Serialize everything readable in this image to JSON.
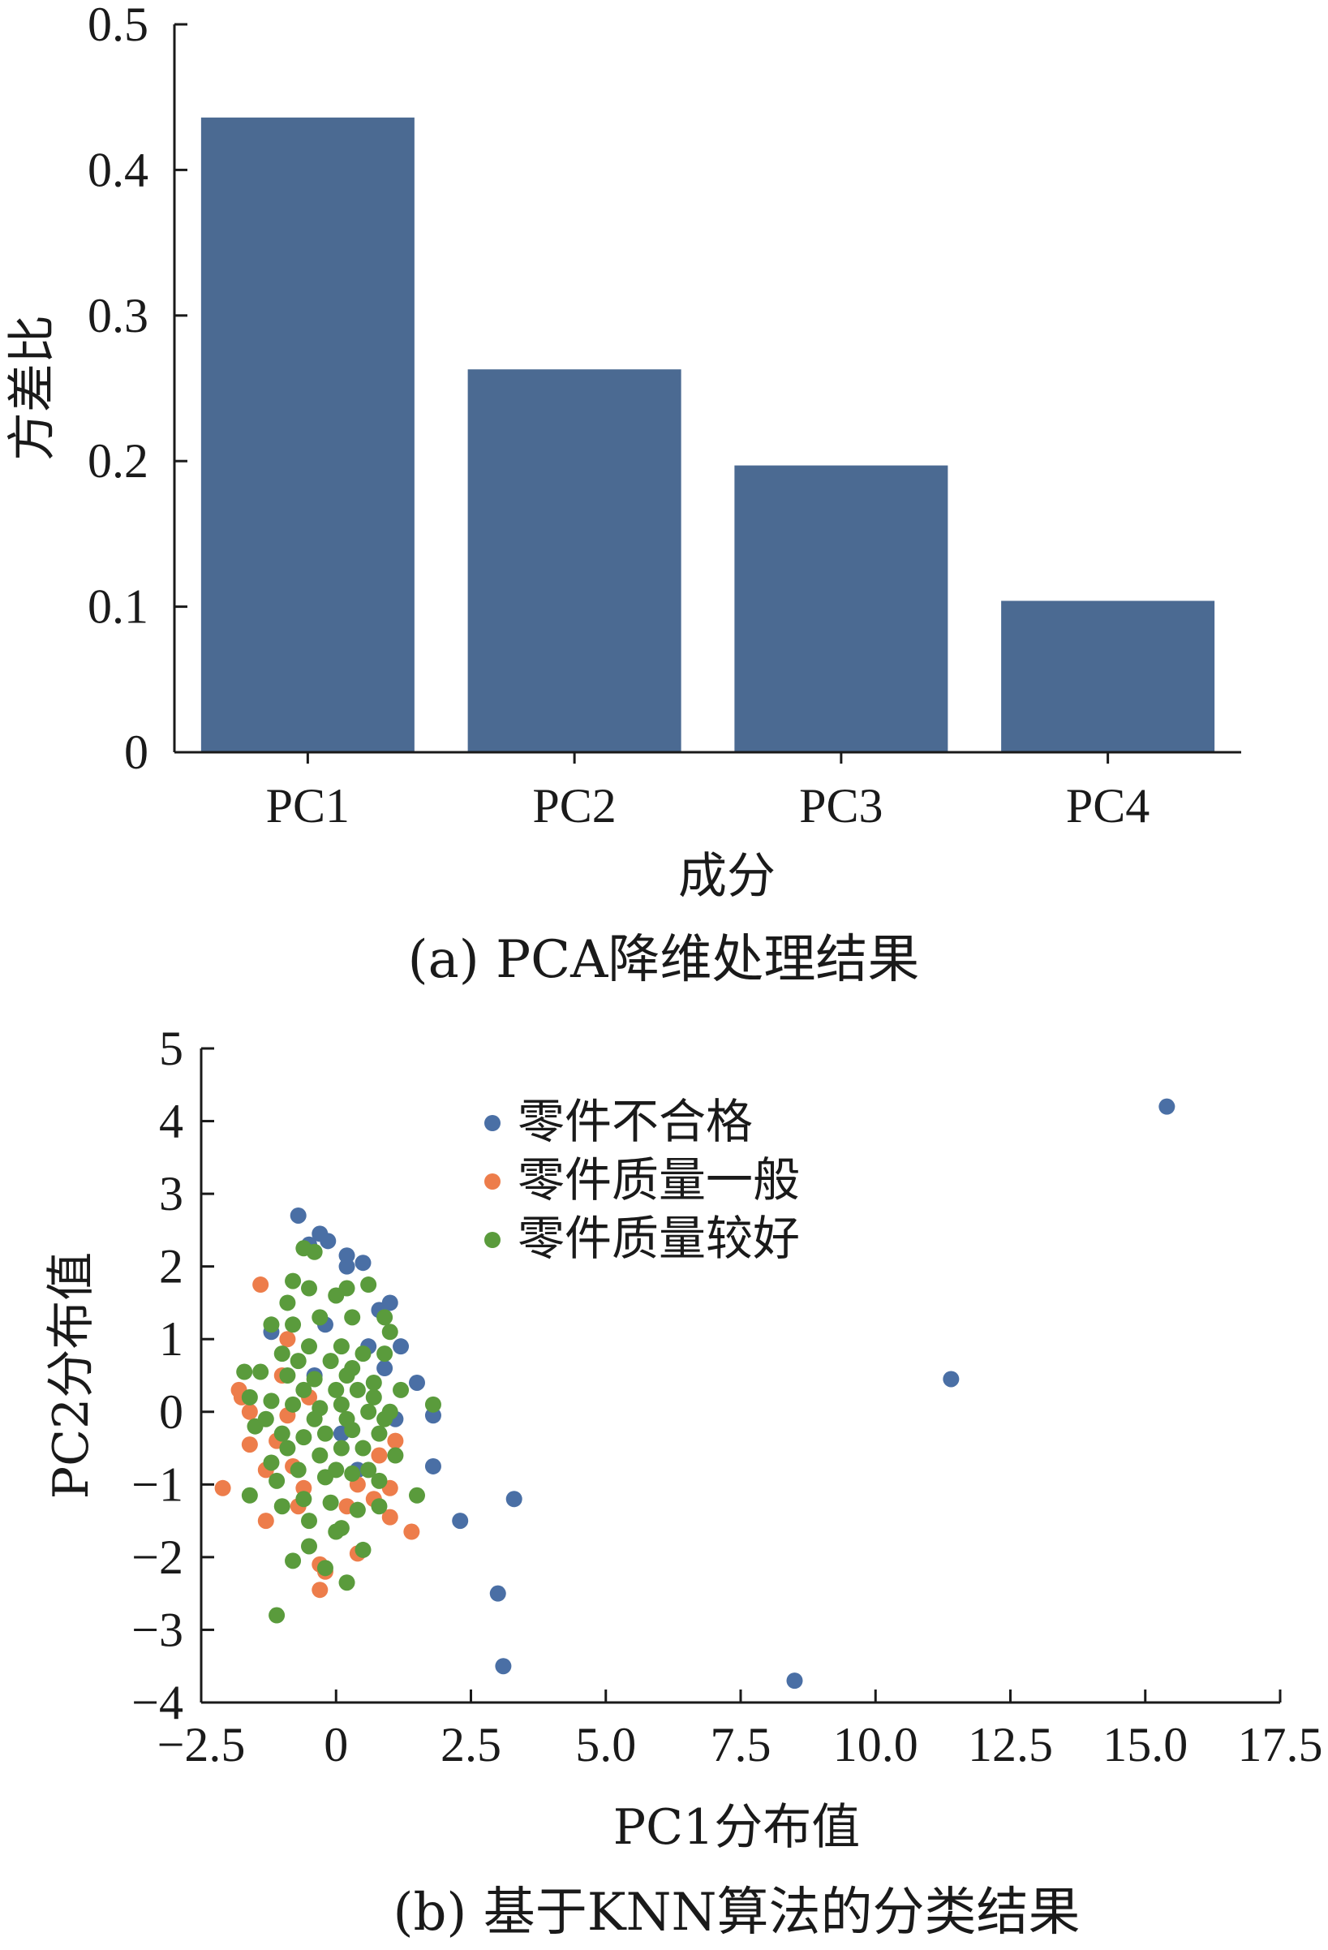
{
  "chart_data": [
    {
      "type": "bar",
      "categories": [
        "PC1",
        "PC2",
        "PC3",
        "PC4"
      ],
      "values": [
        0.436,
        0.263,
        0.197,
        0.104
      ],
      "xlabel": "成分",
      "ylabel": "方差比",
      "ylim": [
        0,
        0.5
      ],
      "yticks": [
        "0",
        "0.1",
        "0.2",
        "0.3",
        "0.4",
        "0.5"
      ],
      "caption": "(a)  PCA降维处理结果",
      "bar_color": "#4b6a92",
      "grid": false
    },
    {
      "type": "scatter",
      "xlabel": "PC1分布值",
      "ylabel": "PC2分布值",
      "xlim": [
        -2.5,
        17.5
      ],
      "ylim": [
        -4,
        5
      ],
      "xticks": [
        "−2.5",
        "0",
        "2.5",
        "5.0",
        "7.5",
        "10.0",
        "12.5",
        "15.0",
        "17.5"
      ],
      "yticks": [
        "−4",
        "−3",
        "−2",
        "−1",
        "0",
        "1",
        "2",
        "3",
        "4",
        "5"
      ],
      "caption": "(b)  基于KNN算法的分类结果",
      "legend_position": "top-center",
      "grid": false,
      "series": [
        {
          "name": "零件不合格",
          "color": "#4a6fa5",
          "points": [
            [
              -0.7,
              2.7
            ],
            [
              -0.3,
              2.45
            ],
            [
              -0.15,
              2.35
            ],
            [
              0.2,
              2.15
            ],
            [
              0.5,
              2.05
            ],
            [
              0.2,
              2.0
            ],
            [
              -0.5,
              2.3
            ],
            [
              1.0,
              1.5
            ],
            [
              0.8,
              1.4
            ],
            [
              -1.2,
              1.1
            ],
            [
              1.2,
              0.9
            ],
            [
              0.9,
              0.6
            ],
            [
              1.5,
              0.4
            ],
            [
              1.8,
              -0.05
            ],
            [
              1.1,
              -0.1
            ],
            [
              1.8,
              -0.75
            ],
            [
              2.3,
              -1.5
            ],
            [
              3.3,
              -1.2
            ],
            [
              3.0,
              -2.5
            ],
            [
              3.1,
              -3.5
            ],
            [
              8.5,
              -3.7
            ],
            [
              11.4,
              0.45
            ],
            [
              15.4,
              4.2
            ],
            [
              0.1,
              -0.3
            ],
            [
              -0.4,
              0.5
            ],
            [
              0.6,
              0.9
            ],
            [
              0.4,
              -0.8
            ],
            [
              -0.2,
              1.2
            ]
          ]
        },
        {
          "name": "零件质量一般",
          "color": "#ed7d4b",
          "points": [
            [
              -1.4,
              1.75
            ],
            [
              -1.6,
              0.0
            ],
            [
              -1.75,
              0.2
            ],
            [
              -1.8,
              0.3
            ],
            [
              -1.6,
              -0.45
            ],
            [
              -2.1,
              -1.05
            ],
            [
              -1.3,
              -0.8
            ],
            [
              -1.3,
              -1.5
            ],
            [
              -1.1,
              -0.4
            ],
            [
              -0.9,
              -0.05
            ],
            [
              -0.8,
              -0.75
            ],
            [
              -0.6,
              -1.05
            ],
            [
              -0.3,
              -2.1
            ],
            [
              -0.3,
              -2.45
            ],
            [
              -0.2,
              -2.2
            ],
            [
              0.4,
              -1.95
            ],
            [
              0.4,
              -1.0
            ],
            [
              0.7,
              -1.2
            ],
            [
              1.0,
              -1.05
            ],
            [
              1.0,
              -1.45
            ],
            [
              1.1,
              -0.4
            ],
            [
              1.4,
              -1.65
            ],
            [
              -0.9,
              1.0
            ],
            [
              -0.5,
              0.2
            ],
            [
              0.2,
              -1.3
            ],
            [
              -1.0,
              0.5
            ],
            [
              0.8,
              -0.6
            ],
            [
              -0.7,
              -1.3
            ]
          ]
        },
        {
          "name": "零件质量较好",
          "color": "#5a9b3c",
          "points": [
            [
              -0.6,
              2.25
            ],
            [
              -0.4,
              2.2
            ],
            [
              -0.8,
              1.8
            ],
            [
              -0.5,
              1.7
            ],
            [
              0.0,
              1.6
            ],
            [
              0.2,
              1.7
            ],
            [
              0.6,
              1.75
            ],
            [
              -0.9,
              1.5
            ],
            [
              -1.2,
              1.2
            ],
            [
              -0.8,
              1.2
            ],
            [
              -0.3,
              1.3
            ],
            [
              0.3,
              1.3
            ],
            [
              0.9,
              1.3
            ],
            [
              1.0,
              1.1
            ],
            [
              -1.0,
              0.8
            ],
            [
              -0.5,
              0.9
            ],
            [
              0.1,
              0.9
            ],
            [
              0.5,
              0.8
            ],
            [
              0.9,
              0.8
            ],
            [
              -1.7,
              0.55
            ],
            [
              -1.4,
              0.55
            ],
            [
              -0.9,
              0.5
            ],
            [
              -0.4,
              0.45
            ],
            [
              0.2,
              0.5
            ],
            [
              0.7,
              0.4
            ],
            [
              1.2,
              0.3
            ],
            [
              -1.6,
              0.2
            ],
            [
              -1.2,
              0.15
            ],
            [
              -0.8,
              0.1
            ],
            [
              -0.3,
              0.05
            ],
            [
              0.1,
              0.1
            ],
            [
              0.6,
              0.0
            ],
            [
              1.0,
              0.0
            ],
            [
              1.8,
              0.1
            ],
            [
              -1.5,
              -0.2
            ],
            [
              -1.0,
              -0.3
            ],
            [
              -0.6,
              -0.35
            ],
            [
              -0.2,
              -0.3
            ],
            [
              0.3,
              -0.25
            ],
            [
              0.8,
              -0.3
            ],
            [
              1.1,
              -0.6
            ],
            [
              -1.2,
              -0.7
            ],
            [
              -0.7,
              -0.8
            ],
            [
              -0.2,
              -0.9
            ],
            [
              0.3,
              -0.85
            ],
            [
              0.8,
              -0.95
            ],
            [
              1.5,
              -1.15
            ],
            [
              -1.6,
              -1.15
            ],
            [
              -1.1,
              -0.95
            ],
            [
              -0.6,
              -1.2
            ],
            [
              -0.1,
              -1.25
            ],
            [
              0.4,
              -1.35
            ],
            [
              0.8,
              -1.3
            ],
            [
              -1.0,
              -1.3
            ],
            [
              -0.5,
              -1.5
            ],
            [
              0.1,
              -1.6
            ],
            [
              -0.8,
              -2.05
            ],
            [
              -0.5,
              -1.85
            ],
            [
              0.0,
              -1.65
            ],
            [
              0.5,
              -1.9
            ],
            [
              -0.2,
              -2.15
            ],
            [
              0.2,
              -2.35
            ],
            [
              -1.1,
              -2.8
            ],
            [
              0.0,
              0.3
            ],
            [
              0.2,
              -0.1
            ],
            [
              -0.4,
              -0.1
            ],
            [
              0.4,
              0.3
            ],
            [
              -0.1,
              0.7
            ],
            [
              0.5,
              -0.5
            ],
            [
              -0.6,
              0.3
            ],
            [
              0.1,
              -0.5
            ],
            [
              0.7,
              0.2
            ],
            [
              -0.3,
              -0.6
            ],
            [
              0.3,
              0.6
            ],
            [
              -0.9,
              -0.5
            ],
            [
              0.0,
              -0.8
            ],
            [
              0.6,
              -0.8
            ],
            [
              -0.7,
              0.7
            ],
            [
              0.9,
              -0.1
            ],
            [
              -1.3,
              -0.1
            ]
          ]
        }
      ]
    }
  ]
}
